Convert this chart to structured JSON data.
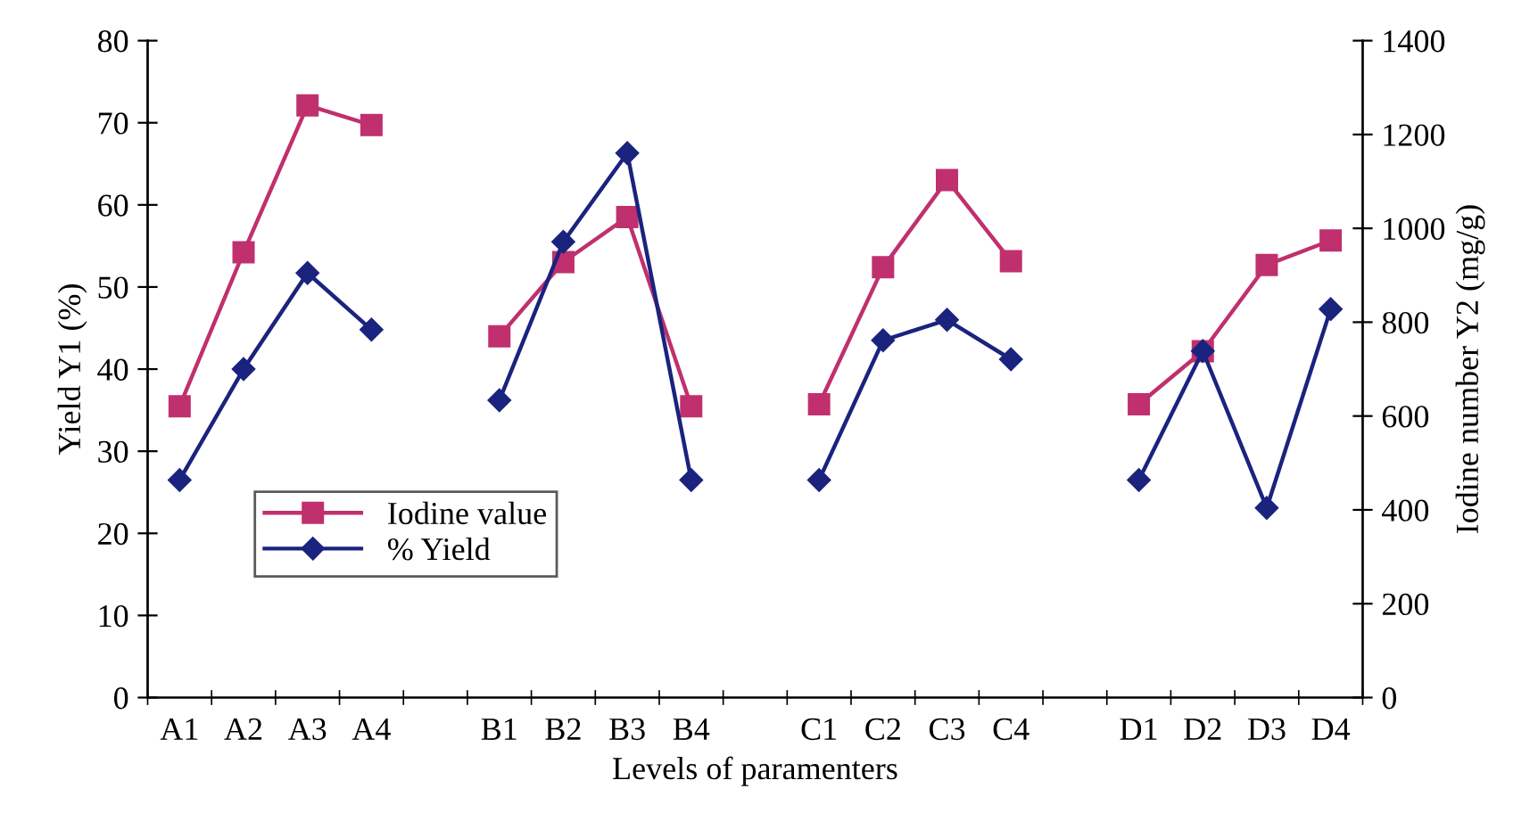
{
  "chart_data": {
    "type": "line",
    "xlabel": "Levels of paramenters",
    "ylabel": "Yield Y1 (%)",
    "y2label": "Iodine number Y2 (mg/g)",
    "categories": [
      "A1",
      "A2",
      "A3",
      "A4",
      null,
      "B1",
      "B2",
      "B3",
      "B4",
      null,
      "C1",
      "C2",
      "C3",
      "C4",
      null,
      "D1",
      "D2",
      "D3",
      "D4"
    ],
    "series": [
      {
        "name": "Iodine value",
        "color": "#c0306e",
        "marker": "square",
        "axis": "y2",
        "values": [
          621,
          949,
          1262,
          1220,
          null,
          770,
          928,
          1024,
          621,
          null,
          625,
          917,
          1103,
          930,
          null,
          625,
          738,
          922,
          974
        ]
      },
      {
        "name": "% Yield",
        "color": "#1a237e",
        "marker": "diamond",
        "axis": "y",
        "values": [
          26.5,
          40,
          51.7,
          44.8,
          null,
          36.2,
          55.5,
          66.3,
          26.5,
          null,
          26.5,
          43.5,
          46,
          41.2,
          null,
          26.5,
          42.2,
          23.1,
          47.3
        ]
      }
    ],
    "ylim": [
      0,
      80
    ],
    "yticks": [
      0,
      10,
      20,
      30,
      40,
      50,
      60,
      70,
      80
    ],
    "y2lim": [
      0,
      1400
    ],
    "y2ticks": [
      0,
      200,
      400,
      600,
      800,
      1000,
      1200,
      1400
    ],
    "legend": "lower left",
    "grid": false,
    "line_style": "solid"
  }
}
